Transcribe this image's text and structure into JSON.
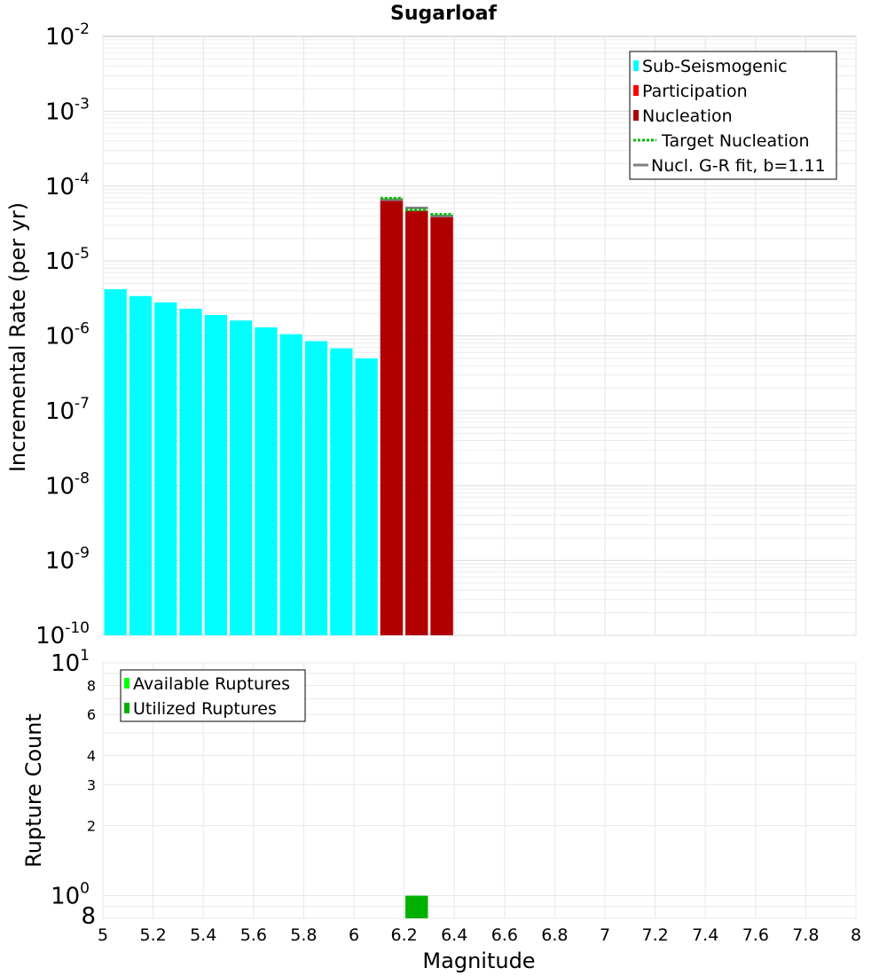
{
  "chart_data": [
    {
      "type": "bar",
      "title": "Sugarloaf",
      "ylabel": "Incremental Rate (per yr)",
      "xlim": [
        5,
        8
      ],
      "ylim": [
        1e-10,
        0.01
      ],
      "yscale": "log",
      "grid": true,
      "legend_position": "top-right",
      "y_ticks": [
        {
          "base": "10",
          "exp": "-2"
        },
        {
          "base": "10",
          "exp": "-3"
        },
        {
          "base": "10",
          "exp": "-4"
        },
        {
          "base": "10",
          "exp": "-5"
        },
        {
          "base": "10",
          "exp": "-6"
        },
        {
          "base": "10",
          "exp": "-7"
        },
        {
          "base": "10",
          "exp": "-8"
        },
        {
          "base": "10",
          "exp": "-9"
        },
        {
          "base": "10",
          "exp": "-10"
        }
      ],
      "series": [
        {
          "name": "Sub-Seismogenic",
          "color": "#00ffff",
          "x": [
            5.05,
            5.15,
            5.25,
            5.35,
            5.45,
            5.55,
            5.65,
            5.75,
            5.85,
            5.95,
            6.05
          ],
          "values": [
            4.2e-06,
            3.4e-06,
            2.8e-06,
            2.3e-06,
            1.9e-06,
            1.6e-06,
            1.3e-06,
            1.05e-06,
            8.5e-07,
            6.8e-07,
            5e-07
          ]
        },
        {
          "name": "Participation",
          "color": "#ff0000",
          "x": [
            6.15,
            6.25,
            6.35
          ],
          "values": [
            6.6e-05,
            4.7e-05,
            4e-05
          ]
        },
        {
          "name": "Nucleation",
          "color": "#b00000",
          "x": [
            6.15,
            6.25,
            6.35
          ],
          "values": [
            6.6e-05,
            4.7e-05,
            4e-05
          ]
        },
        {
          "name": "Target Nucleation",
          "color": "#00bb00",
          "style": "dotted",
          "x": [
            6.15,
            6.25,
            6.35
          ],
          "values": [
            6.9e-05,
            4.8e-05,
            4.2e-05
          ]
        },
        {
          "name": "Nucl. G-R fit, b=1.11",
          "color": "#808080",
          "style": "solid",
          "x": [
            6.15,
            6.25,
            6.35
          ],
          "values": [
            6.6e-05,
            5.1e-05,
            4e-05
          ]
        }
      ]
    },
    {
      "type": "bar",
      "xlabel": "Magnitude",
      "ylabel": "Rupture Count",
      "xlim": [
        5,
        8
      ],
      "ylim": [
        0.8,
        10
      ],
      "yscale": "log",
      "grid": true,
      "legend_position": "top-left",
      "x_ticks": [
        "5",
        "5.2",
        "5.4",
        "5.6",
        "5.8",
        "6",
        "6.2",
        "6.4",
        "6.6",
        "6.8",
        "7",
        "7.2",
        "7.4",
        "7.6",
        "7.8",
        "8"
      ],
      "y_major_ticks": [
        {
          "base": "10",
          "exp": "1"
        },
        {
          "base": "10",
          "exp": "0"
        }
      ],
      "y_minor_ticks": [
        "8",
        "6",
        "4",
        "3",
        "2",
        "8"
      ],
      "series": [
        {
          "name": "Available Ruptures",
          "color": "#00ff00",
          "x": [
            6.25
          ],
          "values": [
            1
          ]
        },
        {
          "name": "Utilized Ruptures",
          "color": "#00b000",
          "x": [
            6.25
          ],
          "values": [
            1
          ]
        }
      ]
    }
  ]
}
